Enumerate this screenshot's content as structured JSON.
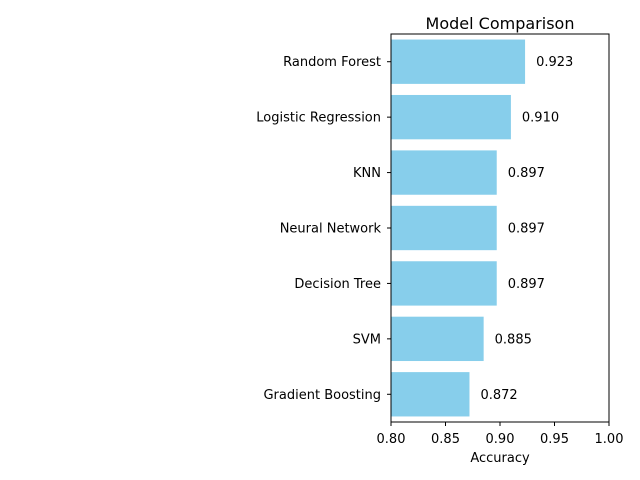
{
  "chart_data": {
    "type": "bar",
    "orientation": "horizontal",
    "title": "Model Comparison",
    "xlabel": "Accuracy",
    "ylabel": "",
    "xlim": [
      0.8,
      1.0
    ],
    "xticks": [
      "0.80",
      "0.85",
      "0.90",
      "0.95",
      "1.00"
    ],
    "categories": [
      "Gradient Boosting",
      "SVM",
      "Decision Tree",
      "Neural Network",
      "KNN",
      "Logistic Regression",
      "Random Forest"
    ],
    "values": [
      0.872,
      0.885,
      0.897,
      0.897,
      0.897,
      0.91,
      0.923
    ],
    "value_labels": [
      "0.872",
      "0.885",
      "0.897",
      "0.897",
      "0.897",
      "0.910",
      "0.923"
    ],
    "bar_color": "#87ceeb",
    "grid": false,
    "legend": "none"
  }
}
